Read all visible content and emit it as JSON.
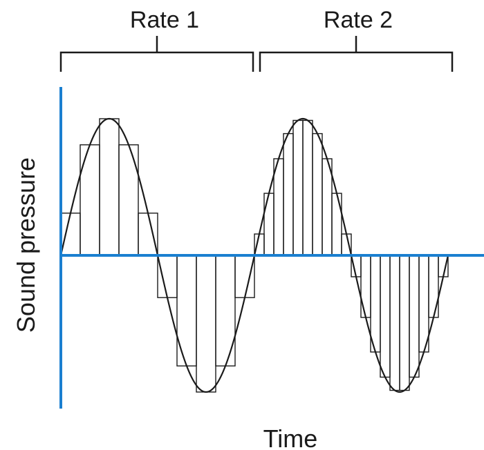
{
  "labels": {
    "rate1": "Rate 1",
    "rate2": "Rate 2",
    "y_axis": "Sound pressure",
    "x_axis": "Time"
  },
  "colors": {
    "axis": "#1a7fd0",
    "ink": "#1a1a1a",
    "background": "#ffffff"
  },
  "waveform": {
    "cycles": 2,
    "rate1_samples_per_cycle": 10,
    "rate2_samples_per_cycle": 20
  }
}
